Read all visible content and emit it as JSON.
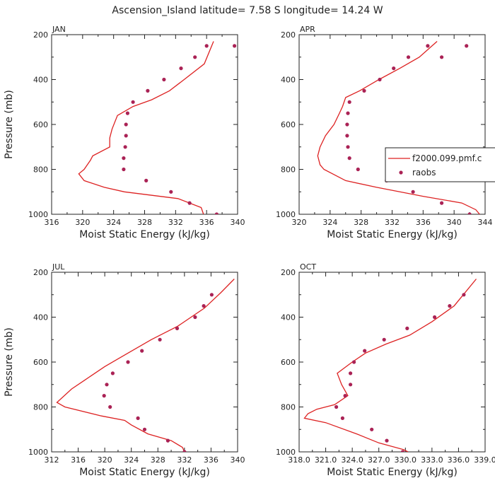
{
  "title": "Ascension_Island   latitude= 7.58 S longitude= 14.24 W",
  "colors": {
    "model": "#dd2222",
    "obs": "#aa2255",
    "axis": "#222222"
  },
  "legend": {
    "model": "f2000.099.pmf.c",
    "obs": "raobs"
  },
  "chart_data": [
    {
      "type": "line",
      "panel": "JAN",
      "xlabel": "Moist Static Energy (kJ/kg)",
      "ylabel": "Pressure (mb)",
      "xlim": [
        316,
        340
      ],
      "ylim": [
        1000,
        200
      ],
      "xticks": [
        "316",
        "320",
        "324",
        "328",
        "332",
        "336",
        "340"
      ],
      "yticks": [
        "200",
        "400",
        "600",
        "800",
        "1000"
      ],
      "series": [
        {
          "kind": "line",
          "x": [
            335.6,
            335.3,
            332.3,
            325.4,
            322.8,
            320.2,
            319.5,
            320.2,
            320.6,
            321.0,
            321.3,
            323.5,
            323.5,
            323.8,
            324.5,
            326.5,
            328.9,
            331.2,
            333.1,
            335.7,
            336.9
          ],
          "y": [
            1000,
            970,
            930,
            900,
            880,
            850,
            820,
            800,
            780,
            760,
            740,
            700,
            660,
            620,
            560,
            520,
            490,
            450,
            400,
            330,
            230
          ]
        },
        {
          "kind": "scatter",
          "x": [
            337.3,
            333.8,
            331.4,
            328.2,
            325.3,
            325.3,
            325.5,
            325.6,
            325.6,
            325.8,
            326.5,
            328.4,
            330.5,
            332.7,
            334.5,
            336.0,
            339.6
          ],
          "y": [
            1000,
            950,
            900,
            850,
            800,
            750,
            700,
            650,
            600,
            550,
            500,
            450,
            400,
            350,
            300,
            250,
            250
          ]
        }
      ]
    },
    {
      "type": "line",
      "panel": "APR",
      "xlabel": "Moist Static Energy (kJ/kg)",
      "ylabel": "",
      "xlim": [
        320,
        344
      ],
      "ylim": [
        1000,
        200
      ],
      "xticks": [
        "320",
        "324",
        "328",
        "332",
        "336",
        "340",
        "344"
      ],
      "yticks": [
        "200",
        "400",
        "600",
        "800",
        "1000"
      ],
      "series": [
        {
          "kind": "line",
          "x": [
            343.3,
            342.8,
            341.0,
            336.0,
            330.0,
            326.0,
            323.2,
            322.7,
            322.4,
            322.7,
            323.4,
            324.5,
            325.2,
            325.6,
            326.0,
            327.8,
            330.3,
            333.0,
            335.5,
            337.8
          ],
          "y": [
            1000,
            980,
            950,
            920,
            880,
            850,
            800,
            780,
            740,
            700,
            650,
            600,
            550,
            520,
            480,
            450,
            400,
            350,
            300,
            230
          ]
        },
        {
          "kind": "scatter",
          "x": [
            342.0,
            338.4,
            334.7,
            331.3,
            327.6,
            326.5,
            326.3,
            326.2,
            326.2,
            326.3,
            326.5,
            328.4,
            330.4,
            332.2,
            334.1,
            336.6,
            338.4,
            341.6
          ],
          "y": [
            1000,
            950,
            900,
            850,
            800,
            750,
            700,
            650,
            600,
            550,
            500,
            450,
            400,
            350,
            300,
            250,
            300,
            250
          ]
        }
      ]
    },
    {
      "type": "line",
      "panel": "JUL",
      "xlabel": "Moist Static Energy (kJ/kg)",
      "ylabel": "Pressure (mb)",
      "xlim": [
        312,
        340
      ],
      "ylim": [
        1000,
        200
      ],
      "xticks": [
        "312",
        "316",
        "320",
        "324",
        "328",
        "332",
        "336",
        "340"
      ],
      "yticks": [
        "200",
        "400",
        "600",
        "800",
        "1000"
      ],
      "series": [
        {
          "kind": "line",
          "x": [
            332.0,
            331.7,
            330.0,
            326.5,
            324.0,
            323.0,
            319.5,
            314.0,
            313.4,
            312.8,
            315.0,
            317.0,
            320.0,
            323.5,
            327.0,
            331.0,
            335.0,
            337.5,
            339.5
          ],
          "y": [
            1000,
            980,
            950,
            920,
            880,
            860,
            840,
            800,
            790,
            780,
            720,
            680,
            620,
            560,
            500,
            440,
            360,
            290,
            230
          ]
        },
        {
          "kind": "scatter",
          "x": [
            332.0,
            329.5,
            326.0,
            325.0,
            320.8,
            319.9,
            320.3,
            321.2,
            323.5,
            325.6,
            328.3,
            330.9,
            333.6,
            334.9,
            336.1
          ],
          "y": [
            1000,
            950,
            900,
            850,
            800,
            750,
            700,
            650,
            600,
            550,
            500,
            450,
            400,
            350,
            300
          ]
        }
      ]
    },
    {
      "type": "line",
      "panel": "OCT",
      "xlabel": "Moist Static Energy (kJ/kg)",
      "ylabel": "",
      "xlim": [
        318.0,
        339.0
      ],
      "ylim": [
        1000,
        200
      ],
      "xticks": [
        "318.0",
        "321.0",
        "324.0",
        "327.0",
        "330.0",
        "333.0",
        "336.0",
        "339.0"
      ],
      "yticks": [
        "200",
        "400",
        "600",
        "800",
        "1000"
      ],
      "series": [
        {
          "kind": "line",
          "x": [
            330.3,
            329.8,
            327.0,
            324.5,
            321.0,
            318.6,
            319.0,
            320.0,
            322.0,
            323.5,
            322.8,
            322.3,
            324.0,
            325.5,
            327.8,
            330.5,
            333.0,
            335.5,
            338.0
          ],
          "y": [
            1000,
            990,
            960,
            920,
            870,
            850,
            830,
            810,
            790,
            750,
            700,
            650,
            600,
            560,
            520,
            480,
            420,
            350,
            230
          ]
        },
        {
          "kind": "scatter",
          "x": [
            329.7,
            327.9,
            326.2,
            322.9,
            322.2,
            323.2,
            323.8,
            323.8,
            324.2,
            325.4,
            327.6,
            330.2,
            333.3,
            335.0,
            336.6
          ],
          "y": [
            1000,
            950,
            900,
            850,
            800,
            750,
            700,
            650,
            600,
            550,
            500,
            450,
            400,
            350,
            300
          ]
        }
      ]
    }
  ]
}
